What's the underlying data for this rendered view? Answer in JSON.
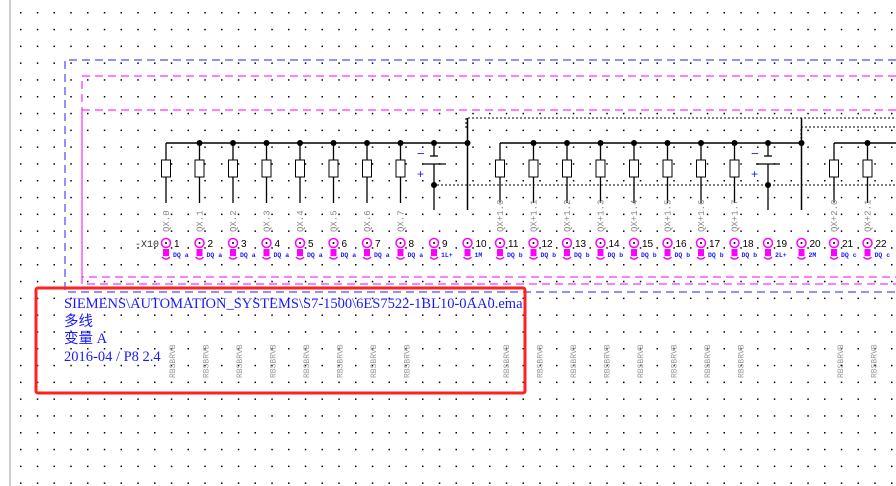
{
  "terminal_strip": "-X10",
  "columns": [
    {
      "kind": "output",
      "label": "QX.0",
      "terminal": "1",
      "func": "DQ a"
    },
    {
      "kind": "output",
      "label": "QX.1",
      "terminal": "2",
      "func": "DQ a"
    },
    {
      "kind": "output",
      "label": "QX.2",
      "terminal": "3",
      "func": "DQ a"
    },
    {
      "kind": "output",
      "label": "QX.3",
      "terminal": "4",
      "func": "DQ a"
    },
    {
      "kind": "output",
      "label": "QX.4",
      "terminal": "5",
      "func": "DQ a"
    },
    {
      "kind": "output",
      "label": "QX.5",
      "terminal": "6",
      "func": "DQ a"
    },
    {
      "kind": "output",
      "label": "QX.6",
      "terminal": "7",
      "func": "DQ a"
    },
    {
      "kind": "output",
      "label": "QX.7",
      "terminal": "8",
      "func": "DQ a"
    },
    {
      "kind": "supply",
      "label": "",
      "terminal": "9",
      "func": "1L+"
    },
    {
      "kind": "ground",
      "label": "",
      "terminal": "10",
      "func": "1M"
    },
    {
      "kind": "output",
      "label": "QX+1.0",
      "terminal": "11",
      "func": "DQ b"
    },
    {
      "kind": "output",
      "label": "QX+1.1",
      "terminal": "12",
      "func": "DQ b"
    },
    {
      "kind": "output",
      "label": "QX+1.2",
      "terminal": "13",
      "func": "DQ b"
    },
    {
      "kind": "output",
      "label": "QX+1.3",
      "terminal": "14",
      "func": "DQ b"
    },
    {
      "kind": "output",
      "label": "QX+1.4",
      "terminal": "15",
      "func": "DQ b"
    },
    {
      "kind": "output",
      "label": "QX+1.5",
      "terminal": "16",
      "func": "DQ b"
    },
    {
      "kind": "output",
      "label": "QX+1.6",
      "terminal": "17",
      "func": "DQ b"
    },
    {
      "kind": "output",
      "label": "QX+1.7",
      "terminal": "18",
      "func": "DQ b"
    },
    {
      "kind": "supply",
      "label": "",
      "terminal": "19",
      "func": "2L+"
    },
    {
      "kind": "ground",
      "label": "",
      "terminal": "20",
      "func": "2M"
    },
    {
      "kind": "output",
      "label": "QX+2.0",
      "terminal": "21",
      "func": "DQ c"
    },
    {
      "kind": "output",
      "label": "QX+2.1",
      "terminal": "22",
      "func": "DQ c"
    }
  ],
  "battery_minus": "−",
  "battery_plus": "+",
  "cable_label": "RBSBRVB",
  "info": {
    "path": "SIEMENS\\AUTOMATION_SYSTEMS\\S7-1500\\6ES7522-1BL10-0AA0.ema",
    "type": "多线",
    "variant": "变量 A",
    "version": "2016-04 / P8 2.4"
  },
  "colors": {
    "terminal": "#ff00ff",
    "text_blue": "#1a1aff",
    "highlight": "#ff2020",
    "blue_box": "#2020ff",
    "magenta_box": "#ff00ff"
  }
}
